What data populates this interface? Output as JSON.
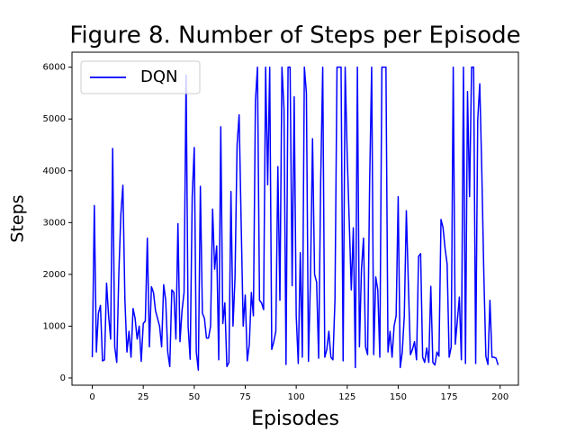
{
  "chart_data": {
    "type": "line",
    "title": "Figure 8. Number of Steps per Episode",
    "x_label": "Episodes",
    "y_label": "Steps",
    "x": [
      0,
      1,
      2,
      3,
      4,
      5,
      6,
      7,
      8,
      9,
      10,
      11,
      12,
      13,
      14,
      15,
      16,
      17,
      18,
      19,
      20,
      21,
      22,
      23,
      24,
      25,
      26,
      27,
      28,
      29,
      30,
      31,
      32,
      33,
      34,
      35,
      36,
      37,
      38,
      39,
      40,
      41,
      42,
      43,
      44,
      45,
      46,
      47,
      48,
      49,
      50,
      51,
      52,
      53,
      54,
      55,
      56,
      57,
      58,
      59,
      60,
      61,
      62,
      63,
      64,
      65,
      66,
      67,
      68,
      69,
      70,
      71,
      72,
      73,
      74,
      75,
      76,
      77,
      78,
      79,
      80,
      81,
      82,
      83,
      84,
      85,
      86,
      87,
      88,
      89,
      90,
      91,
      92,
      93,
      94,
      95,
      96,
      97,
      98,
      99,
      100,
      101,
      102,
      103,
      104,
      105,
      106,
      107,
      108,
      109,
      110,
      111,
      112,
      113,
      114,
      115,
      116,
      117,
      118,
      119,
      120,
      121,
      122,
      123,
      124,
      125,
      126,
      127,
      128,
      129,
      130,
      131,
      132,
      133,
      134,
      135,
      136,
      137,
      138,
      139,
      140,
      141,
      142,
      143,
      144,
      145,
      146,
      147,
      148,
      149,
      150,
      151,
      152,
      153,
      154,
      155,
      156,
      157,
      158,
      159,
      160,
      161,
      162,
      163,
      164,
      165,
      166,
      167,
      168,
      169,
      170,
      171,
      172,
      173,
      174,
      175,
      176,
      177,
      178,
      179,
      180,
      181,
      182,
      183,
      184,
      185,
      186,
      187,
      188,
      189,
      190,
      191,
      192,
      193,
      194,
      195,
      196,
      197,
      198,
      199
    ],
    "series": [
      {
        "name": "DQN",
        "color": "#0000ff",
        "values": [
          400,
          3330,
          500,
          1250,
          1400,
          330,
          350,
          1830,
          1200,
          750,
          4430,
          600,
          300,
          2000,
          3150,
          3720,
          1500,
          500,
          900,
          400,
          1340,
          1150,
          750,
          1000,
          320,
          1050,
          1100,
          2700,
          600,
          1760,
          1650,
          1300,
          1150,
          1000,
          600,
          1800,
          1500,
          500,
          220,
          1700,
          1650,
          750,
          2980,
          700,
          1300,
          1650,
          5850,
          1000,
          360,
          3500,
          4450,
          500,
          150,
          3700,
          1250,
          1150,
          770,
          770,
          1000,
          3260,
          2100,
          2550,
          350,
          4850,
          1050,
          1450,
          220,
          300,
          3600,
          1000,
          1950,
          4500,
          5080,
          3000,
          1000,
          1600,
          330,
          650,
          1650,
          1200,
          5350,
          6000,
          1500,
          1450,
          1320,
          6000,
          3730,
          6000,
          550,
          700,
          900,
          4080,
          1500,
          6000,
          5200,
          260,
          6000,
          6000,
          1780,
          5430,
          1200,
          280,
          2420,
          400,
          6000,
          5500,
          320,
          1950,
          4620,
          2000,
          1850,
          380,
          3800,
          6000,
          400,
          550,
          900,
          400,
          350,
          1500,
          6000,
          6000,
          6000,
          330,
          6000,
          4300,
          3020,
          1700,
          2900,
          200,
          6000,
          600,
          2100,
          2700,
          600,
          450,
          3770,
          6000,
          450,
          1950,
          1700,
          400,
          6000,
          6000,
          6000,
          500,
          900,
          400,
          1000,
          1200,
          3500,
          200,
          500,
          1200,
          3230,
          1800,
          450,
          550,
          700,
          350,
          2350,
          2400,
          400,
          300,
          580,
          300,
          1770,
          300,
          250,
          500,
          420,
          3060,
          2900,
          2500,
          2200,
          400,
          600,
          6000,
          650,
          1100,
          1560,
          350,
          6000,
          280,
          5530,
          3500,
          6000,
          6000,
          280,
          4980,
          5680,
          4000,
          2000,
          420,
          260,
          1500,
          400,
          400,
          380,
          250
        ]
      }
    ],
    "xlim": [
      -9.95,
      208.95
    ],
    "xticks": [
      0,
      25,
      50,
      75,
      100,
      125,
      150,
      175,
      200
    ],
    "ylim": [
      -140,
      6290
    ],
    "yticks": [
      0,
      1000,
      2000,
      3000,
      4000,
      5000,
      6000
    ],
    "grid": false,
    "legend": "upper left"
  }
}
